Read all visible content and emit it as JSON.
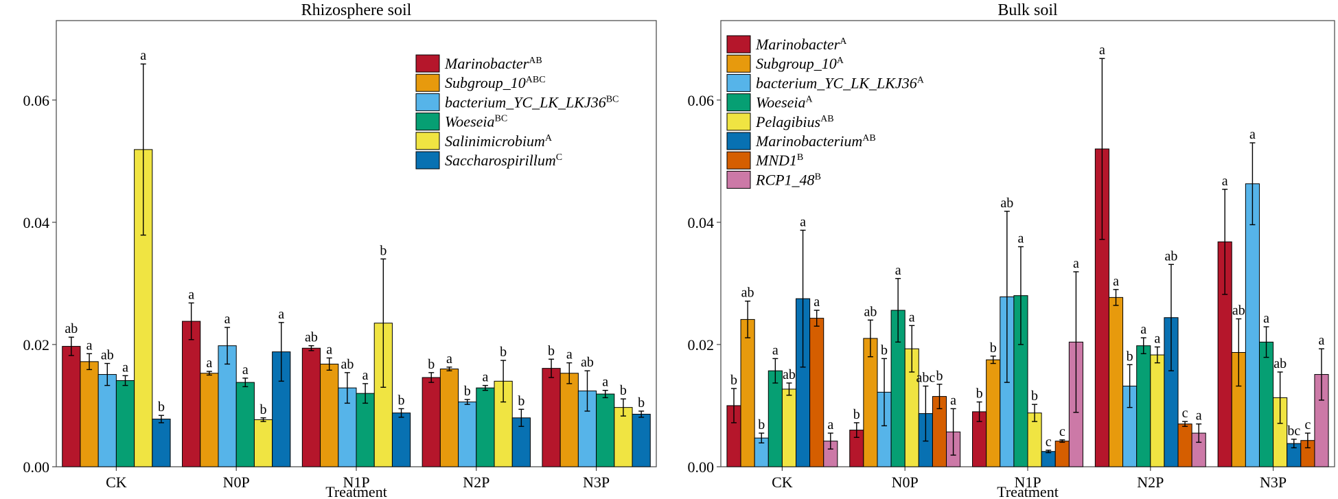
{
  "chart_data": [
    {
      "type": "bar",
      "title": "Rhizosphere soil",
      "xlabel": "Treatment",
      "ylabel": "",
      "ylim": [
        0,
        0.073
      ],
      "yticks": [
        "0.00",
        "0.02",
        "0.04",
        "0.06"
      ],
      "ytick_values": [
        0,
        0.02,
        0.04,
        0.06
      ],
      "categories": [
        "CK",
        "N0P",
        "N1P",
        "N2P",
        "N3P"
      ],
      "legend_position": "top-right",
      "series": [
        {
          "name": "Marinobacter",
          "superscript": "AB",
          "color": "#B5162B",
          "values": [
            0.0197,
            0.0238,
            0.0194,
            0.0146,
            0.0161
          ],
          "errors": [
            0.0015,
            0.003,
            0.0004,
            0.0008,
            0.0015
          ],
          "letters": [
            "ab",
            "a",
            "ab",
            "b",
            "b"
          ]
        },
        {
          "name": "Subgroup_10",
          "superscript": "ABC",
          "color": "#E79A0D",
          "values": [
            0.0172,
            0.0153,
            0.0168,
            0.016,
            0.0153
          ],
          "errors": [
            0.0013,
            0.0003,
            0.001,
            0.0003,
            0.0017
          ],
          "letters": [
            "a",
            "a",
            "a",
            "a",
            "a"
          ]
        },
        {
          "name": "bacterium_YC_LK_LKJ36",
          "superscript": "BC",
          "color": "#56B4E9",
          "values": [
            0.0151,
            0.0198,
            0.0129,
            0.0106,
            0.0124
          ],
          "errors": [
            0.0018,
            0.003,
            0.0025,
            0.0004,
            0.0033
          ],
          "letters": [
            "ab",
            "a",
            "ab",
            "b",
            "ab"
          ]
        },
        {
          "name": "Woeseia",
          "superscript": "BC",
          "color": "#069F73",
          "values": [
            0.0141,
            0.0138,
            0.012,
            0.0129,
            0.0119
          ],
          "errors": [
            0.0008,
            0.0007,
            0.0016,
            0.0004,
            0.0006
          ],
          "letters": [
            "a",
            "a",
            "a",
            "a",
            "a"
          ]
        },
        {
          "name": "Salinimicrobium",
          "superscript": "A",
          "color": "#F0E442",
          "values": [
            0.0519,
            0.0077,
            0.0235,
            0.014,
            0.0097
          ],
          "errors": [
            0.014,
            0.0003,
            0.0105,
            0.0034,
            0.0014
          ],
          "letters": [
            "a",
            "b",
            "b",
            "b",
            "b"
          ]
        },
        {
          "name": "Saccharospirillum",
          "superscript": "C",
          "color": "#0871B2",
          "values": [
            0.0078,
            0.0188,
            0.0088,
            0.008,
            0.0086
          ],
          "errors": [
            0.0006,
            0.0048,
            0.0007,
            0.0014,
            0.0005
          ],
          "letters": [
            "b",
            "a",
            "b",
            "b",
            "b"
          ]
        }
      ]
    },
    {
      "type": "bar",
      "title": "Bulk soil",
      "xlabel": "Treatment",
      "ylabel": "",
      "ylim": [
        0,
        0.073
      ],
      "yticks": [
        "0.00",
        "0.02",
        "0.04",
        "0.06"
      ],
      "ytick_values": [
        0,
        0.02,
        0.04,
        0.06
      ],
      "categories": [
        "CK",
        "N0P",
        "N1P",
        "N2P",
        "N3P"
      ],
      "legend_position": "top-left",
      "series": [
        {
          "name": "Marinobacter",
          "superscript": "A",
          "color": "#B5162B",
          "values": [
            0.01,
            0.006,
            0.009,
            0.052,
            0.0368
          ],
          "errors": [
            0.0028,
            0.0012,
            0.0016,
            0.0148,
            0.0086
          ],
          "letters": [
            "b",
            "b",
            "b",
            "a",
            "a"
          ]
        },
        {
          "name": "Subgroup_10",
          "superscript": "A",
          "color": "#E79A0D",
          "values": [
            0.0241,
            0.021,
            0.0175,
            0.0277,
            0.0187
          ],
          "errors": [
            0.003,
            0.003,
            0.0006,
            0.0013,
            0.0055
          ],
          "letters": [
            "ab",
            "ab",
            "b",
            "a",
            "ab"
          ]
        },
        {
          "name": "bacterium_YC_LK_LKJ36",
          "superscript": "A",
          "color": "#56B4E9",
          "values": [
            0.0047,
            0.0122,
            0.0278,
            0.0132,
            0.0463
          ],
          "errors": [
            0.0008,
            0.0055,
            0.014,
            0.0035,
            0.0067
          ],
          "letters": [
            "b",
            "b",
            "ab",
            "b",
            "a"
          ]
        },
        {
          "name": "Woeseia",
          "superscript": "A",
          "color": "#069F73",
          "values": [
            0.0157,
            0.0256,
            0.028,
            0.0198,
            0.0204
          ],
          "errors": [
            0.002,
            0.0052,
            0.008,
            0.0013,
            0.0025
          ],
          "letters": [
            "a",
            "a",
            "a",
            "a",
            "a"
          ]
        },
        {
          "name": "Pelagibius",
          "superscript": "AB",
          "color": "#F0E442",
          "values": [
            0.0127,
            0.0193,
            0.0088,
            0.0183,
            0.0113
          ],
          "errors": [
            0.001,
            0.0038,
            0.0014,
            0.0013,
            0.0042
          ],
          "letters": [
            "ab",
            "a",
            "b",
            "a",
            "ab"
          ]
        },
        {
          "name": "Marinobacterium",
          "superscript": "AB",
          "color": "#0871B2",
          "values": [
            0.0275,
            0.0087,
            0.0025,
            0.0244,
            0.0038
          ],
          "errors": [
            0.0112,
            0.0045,
            0.0002,
            0.0087,
            0.0007
          ],
          "letters": [
            "a",
            "abc",
            "c",
            "ab",
            "bc"
          ]
        },
        {
          "name": "MND1",
          "superscript": "B",
          "color": "#D55E00",
          "values": [
            0.0243,
            0.0115,
            0.0042,
            0.007,
            0.0043
          ],
          "errors": [
            0.0013,
            0.002,
            0.0002,
            0.0004,
            0.0012
          ],
          "letters": [
            "a",
            "b",
            "c",
            "c",
            "c"
          ]
        },
        {
          "name": "RCP1_48",
          "superscript": "B",
          "color": "#CC79A7",
          "values": [
            0.0042,
            0.0057,
            0.0204,
            0.0055,
            0.0151
          ],
          "errors": [
            0.0013,
            0.0038,
            0.0115,
            0.0015,
            0.0042
          ],
          "letters": [
            "a",
            "a",
            "a",
            "a",
            "a"
          ]
        }
      ]
    }
  ]
}
